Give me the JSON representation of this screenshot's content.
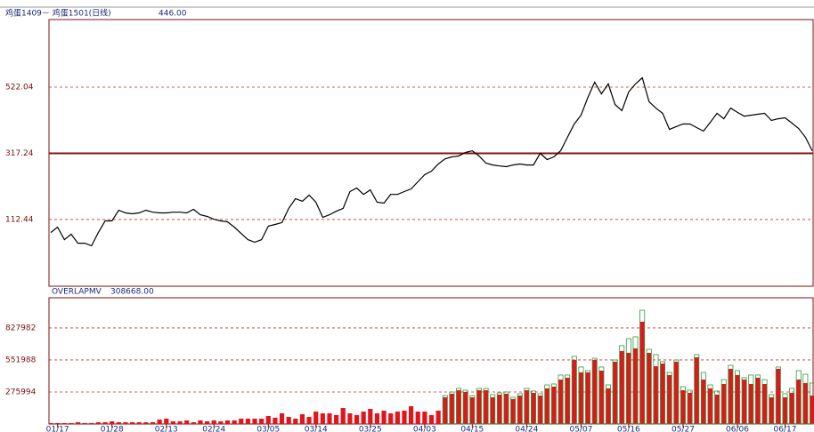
{
  "chart_data": [
    {
      "type": "line",
      "title": "鸡蛋1409－ 鸡蛋1501(日线)",
      "annotation": "446.00",
      "color": "#000000",
      "values": [
        72,
        89,
        50,
        67,
        39,
        39,
        31,
        72,
        108,
        108,
        141,
        133,
        130,
        133,
        141,
        135,
        133,
        133,
        135,
        135,
        133,
        144,
        127,
        122,
        113,
        108,
        105,
        89,
        69,
        50,
        42,
        50,
        92,
        97,
        103,
        147,
        177,
        169,
        188,
        166,
        119,
        127,
        138,
        147,
        199,
        210,
        190,
        204,
        166,
        163,
        190,
        190,
        199,
        207,
        229,
        251,
        262,
        284,
        300,
        306,
        309,
        320,
        325,
        309,
        287,
        281,
        278,
        276,
        281,
        284,
        281,
        281,
        317,
        298,
        306,
        325,
        367,
        408,
        435,
        490,
        537,
        501,
        532,
        468,
        449,
        507,
        532,
        551,
        477,
        457,
        441,
        391,
        400,
        408,
        408,
        397,
        386,
        413,
        441,
        424,
        457,
        444,
        432,
        435,
        438,
        441,
        419,
        424,
        427,
        411,
        394,
        367,
        325
      ],
      "ylim": [
        -94,
        731
      ],
      "yticks": [
        112.44,
        317.24,
        522.04
      ],
      "solid_tick": 1,
      "grid": true
    },
    {
      "type": "bar",
      "title": "OVERLAPMV",
      "annotation": "308668.00",
      "categories": [
        null,
        "01/17",
        null,
        null,
        null,
        null,
        null,
        null,
        null,
        "01/28",
        null,
        null,
        null,
        null,
        null,
        null,
        null,
        "02/13",
        null,
        null,
        null,
        null,
        null,
        null,
        "02/24",
        null,
        null,
        null,
        null,
        null,
        null,
        null,
        "03/05",
        null,
        null,
        null,
        null,
        null,
        null,
        "03/14",
        null,
        null,
        null,
        null,
        null,
        null,
        null,
        "03/25",
        null,
        null,
        null,
        null,
        null,
        null,
        null,
        "04/03",
        null,
        null,
        null,
        null,
        null,
        null,
        "04/15",
        null,
        null,
        null,
        null,
        null,
        null,
        null,
        "04/24",
        null,
        null,
        null,
        null,
        null,
        null,
        null,
        "05/07",
        null,
        null,
        null,
        null,
        null,
        null,
        "05/16",
        null,
        null,
        null,
        null,
        null,
        null,
        null,
        "05/27",
        null,
        null,
        null,
        null,
        null,
        null,
        null,
        "06/06",
        null,
        null,
        null,
        null,
        null,
        null,
        "06/17",
        null,
        null,
        null,
        null
      ],
      "series": [
        {
          "color": "#e0161c",
          "fill": true,
          "values": [
            8000,
            8000,
            8000,
            8000,
            15000,
            8000,
            8000,
            15000,
            15000,
            23000,
            15000,
            15000,
            15000,
            15000,
            15000,
            15000,
            38000,
            46000,
            23000,
            23000,
            31000,
            15000,
            31000,
            23000,
            31000,
            23000,
            31000,
            31000,
            46000,
            46000,
            46000,
            46000,
            69000,
            54000,
            92000,
            61000,
            46000,
            84000,
            61000,
            107000,
            92000,
            92000,
            77000,
            138000,
            92000,
            77000,
            107000,
            130000,
            92000,
            115000,
            92000,
            107000,
            115000,
            153000,
            107000,
            107000,
            77000,
            115000,
            230000,
            261000,
            291000,
            276000,
            230000,
            291000,
            291000,
            230000,
            253000,
            261000,
            215000,
            245000,
            291000,
            268000,
            245000,
            307000,
            322000,
            383000,
            399000,
            552000,
            445000,
            445000,
            552000,
            460000,
            307000,
            537000,
            629000,
            613000,
            652000,
            882000,
            613000,
            498000,
            521000,
            422000,
            537000,
            291000,
            268000,
            575000,
            383000,
            307000,
            253000,
            345000,
            475000,
            422000,
            383000,
            345000,
            399000,
            345000,
            230000,
            475000,
            230000,
            268000,
            383000,
            353000,
            245000
          ]
        },
        {
          "color": "#2e9a3a",
          "fill": false,
          "values": [
            null,
            null,
            null,
            null,
            null,
            null,
            null,
            null,
            null,
            null,
            null,
            null,
            null,
            null,
            null,
            null,
            null,
            null,
            null,
            null,
            null,
            null,
            null,
            null,
            null,
            null,
            null,
            null,
            null,
            null,
            null,
            null,
            null,
            null,
            null,
            null,
            null,
            null,
            null,
            null,
            null,
            null,
            null,
            null,
            null,
            null,
            null,
            null,
            null,
            null,
            null,
            null,
            null,
            null,
            null,
            null,
            null,
            null,
            245000,
            276000,
            307000,
            291000,
            245000,
            307000,
            307000,
            253000,
            268000,
            276000,
            230000,
            261000,
            307000,
            284000,
            261000,
            337000,
            345000,
            422000,
            422000,
            583000,
            491000,
            460000,
            567000,
            491000,
            337000,
            552000,
            675000,
            736000,
            751000,
            981000,
            644000,
            598000,
            537000,
            445000,
            552000,
            322000,
            291000,
            598000,
            445000,
            337000,
            284000,
            383000,
            506000,
            460000,
            399000,
            422000,
            422000,
            383000,
            253000,
            491000,
            261000,
            307000,
            460000,
            429000,
            353000
          ]
        }
      ],
      "ylim": [
        0,
        1088000
      ],
      "yticks": [
        275994,
        551988,
        827982
      ],
      "grid": true
    }
  ]
}
